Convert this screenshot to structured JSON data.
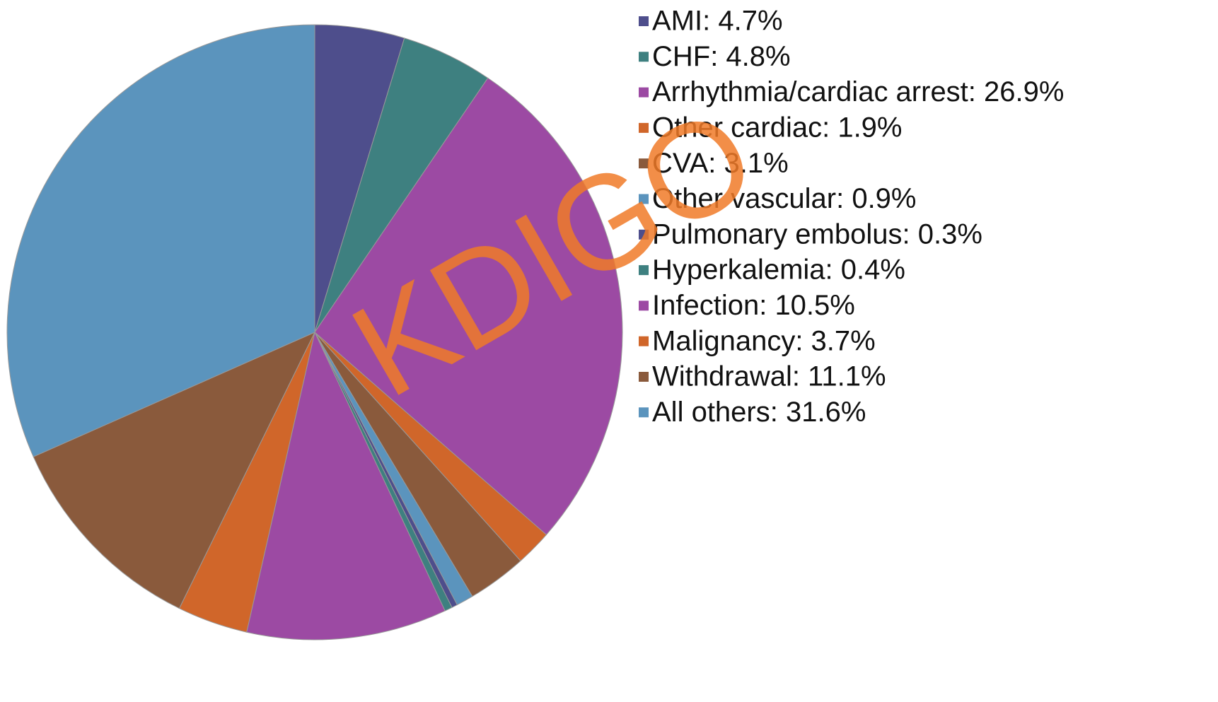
{
  "chart_data": {
    "type": "pie",
    "categories": [
      "AMI: 4.7%",
      "CHF: 4.8%",
      "Arrhythmia/cardiac arrest: 26.9%",
      "Other cardiac: 1.9%",
      "CVA: 3.1%",
      "Other vascular: 0.9%",
      "Pulmonary embolus: 0.3%",
      "Hyperkalemia: 0.4%",
      "Infection: 10.5%",
      "Malignancy: 3.7%",
      "Withdrawal: 11.1%",
      "All others: 31.6%"
    ],
    "values": [
      4.7,
      4.8,
      26.9,
      1.9,
      3.1,
      0.9,
      0.3,
      0.4,
      10.5,
      3.7,
      11.1,
      31.6
    ],
    "colors": [
      "#4e4e8c",
      "#3e8080",
      "#9c4aa3",
      "#d0662a",
      "#8a5a3c",
      "#5b94bd",
      "#4e4e8c",
      "#3e8080",
      "#9c4aa3",
      "#d0662a",
      "#8a5a3c",
      "#5b94bd"
    ],
    "watermark": "KDIGO"
  }
}
